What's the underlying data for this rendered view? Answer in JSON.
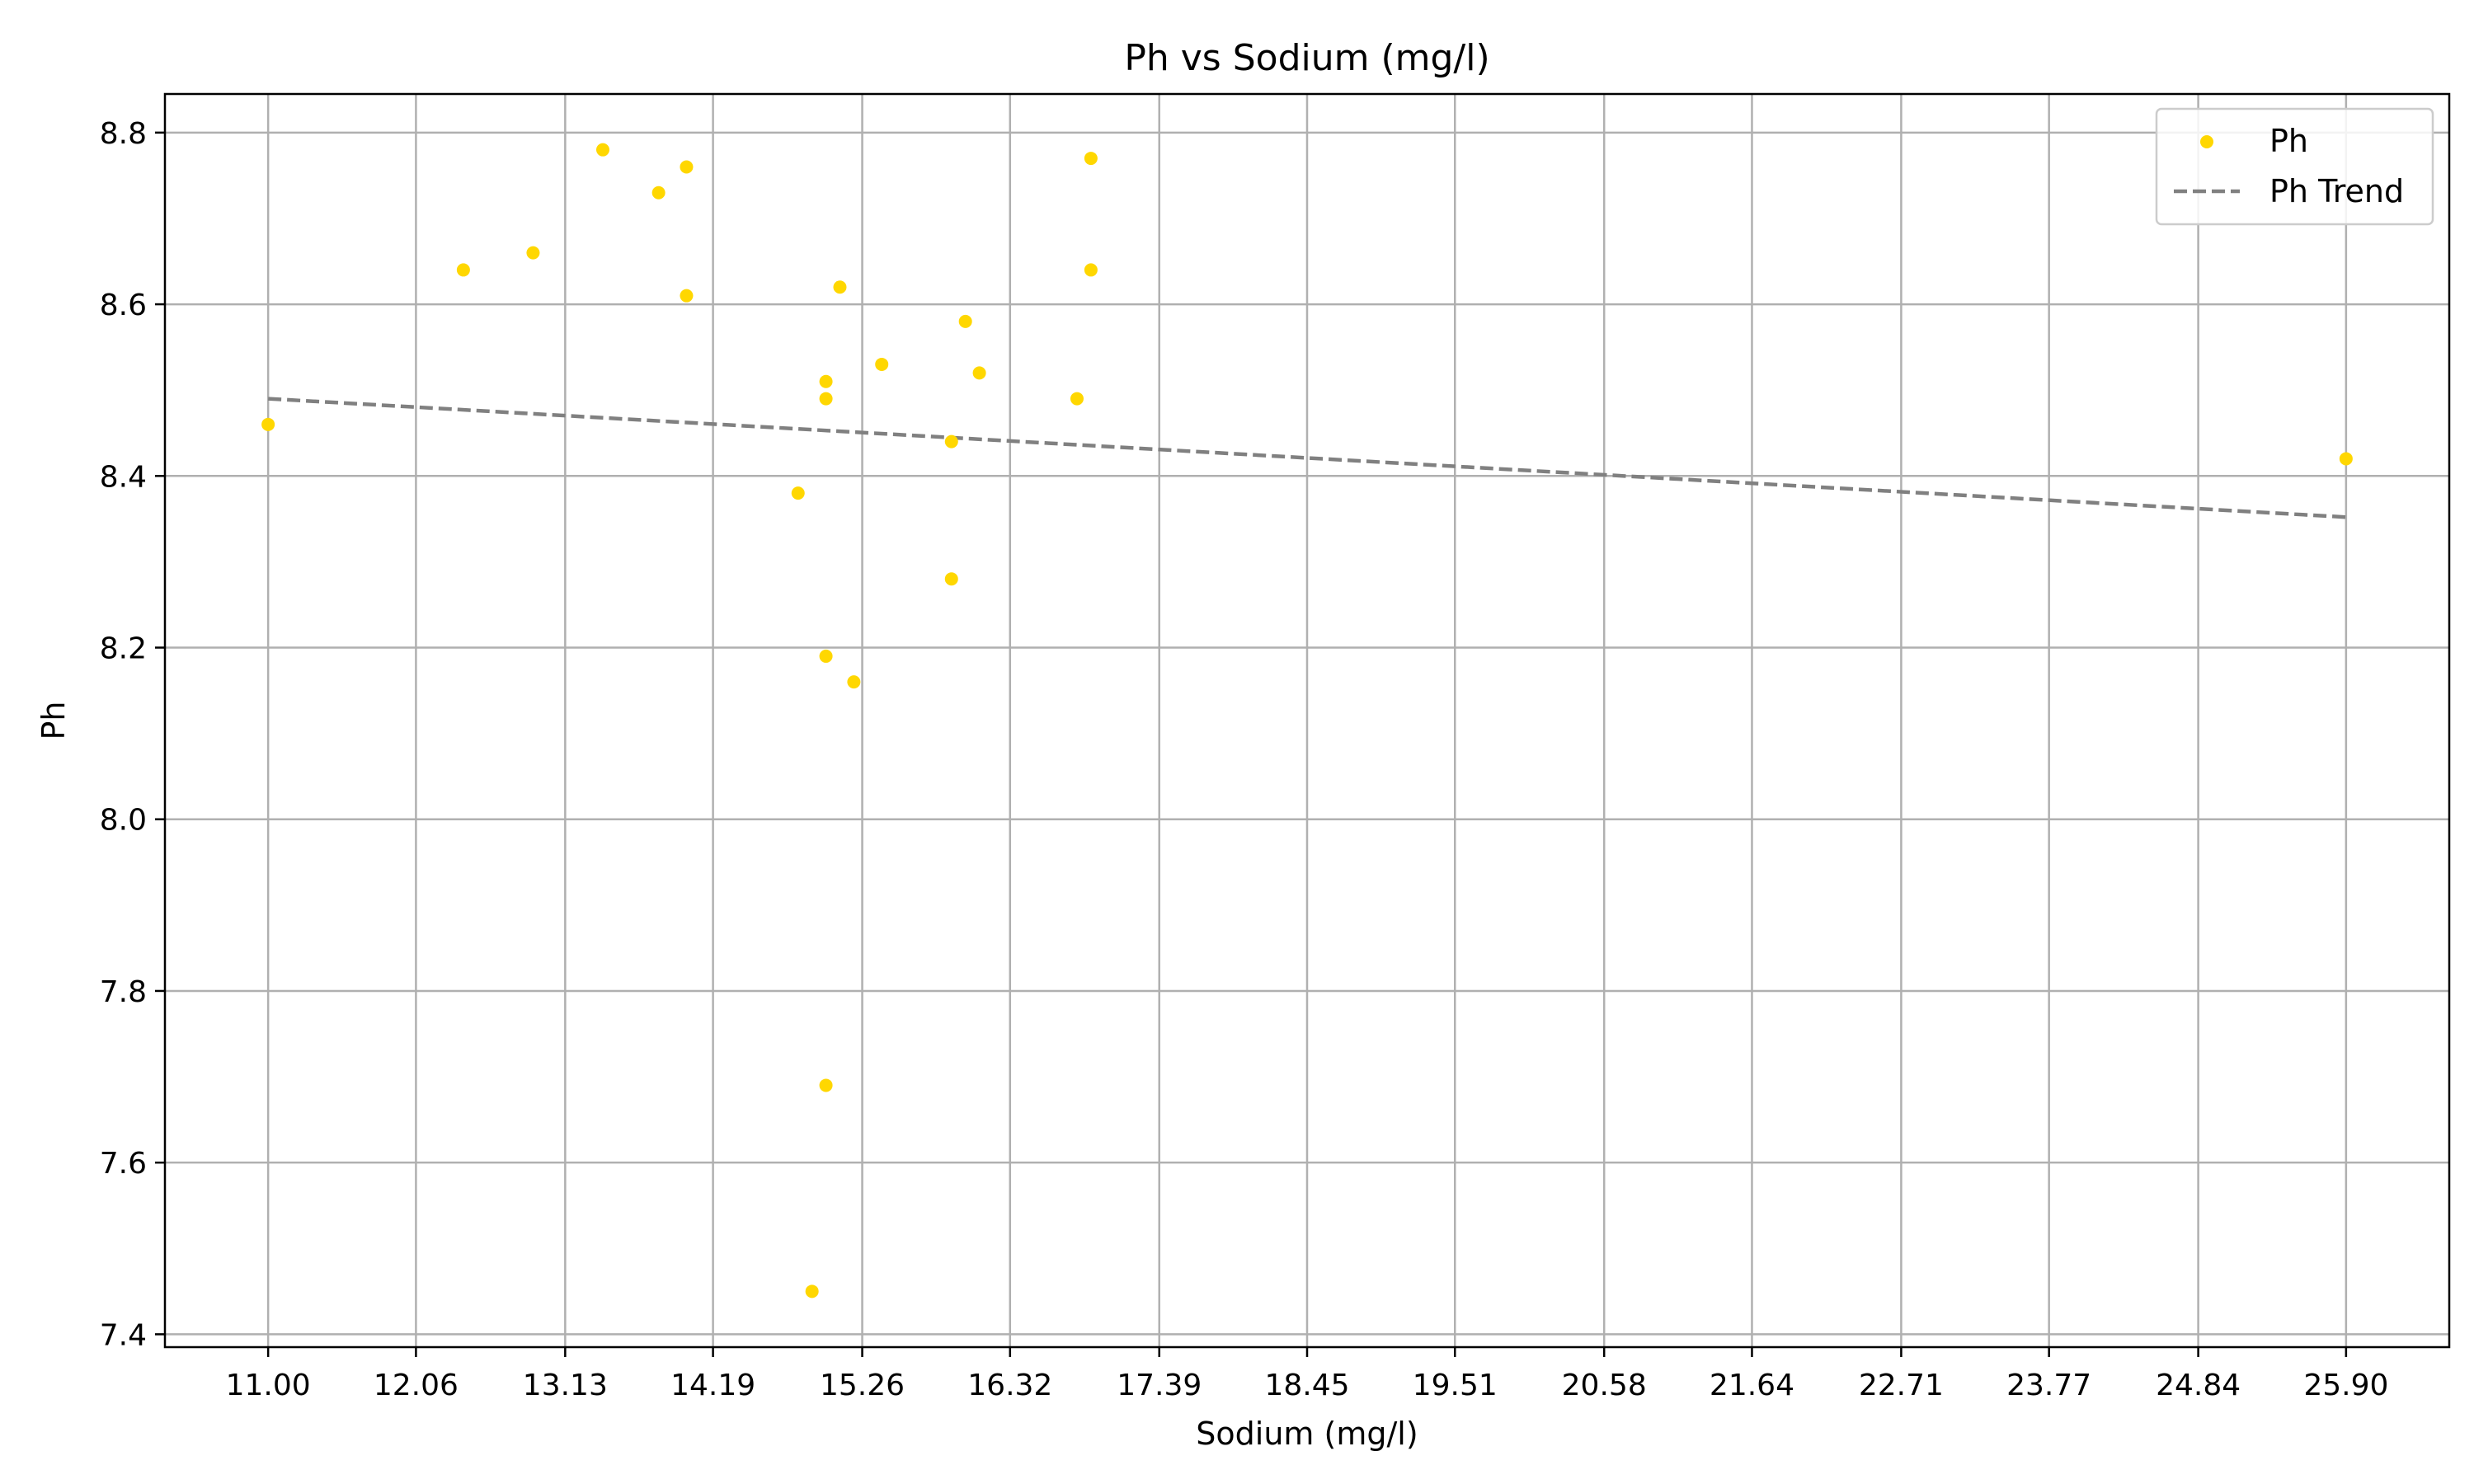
{
  "chart_data": {
    "type": "scatter",
    "title": "Ph vs Sodium (mg/l)",
    "xlabel": "Sodium (mg/l)",
    "ylabel": "Ph",
    "xlim": [
      10.26,
      26.64
    ],
    "ylim": [
      7.385,
      8.845
    ],
    "xticks": [
      "11.00",
      "12.06",
      "13.13",
      "14.19",
      "15.26",
      "16.32",
      "17.39",
      "18.45",
      "19.51",
      "20.58",
      "21.64",
      "22.71",
      "23.77",
      "24.84",
      "25.90"
    ],
    "yticks": [
      "7.4",
      "7.6",
      "7.8",
      "8.0",
      "8.2",
      "8.4",
      "8.6",
      "8.8"
    ],
    "grid": true,
    "legend_position": "top-right",
    "series": [
      {
        "name": "Ph",
        "kind": "scatter",
        "color": "#FFD700",
        "points": [
          {
            "x": 11.0,
            "y": 8.46
          },
          {
            "x": 12.4,
            "y": 8.64
          },
          {
            "x": 12.9,
            "y": 8.66
          },
          {
            "x": 13.4,
            "y": 8.78
          },
          {
            "x": 13.8,
            "y": 8.73
          },
          {
            "x": 14.0,
            "y": 8.76
          },
          {
            "x": 14.0,
            "y": 8.61
          },
          {
            "x": 14.8,
            "y": 8.38
          },
          {
            "x": 14.9,
            "y": 7.45
          },
          {
            "x": 15.0,
            "y": 8.51
          },
          {
            "x": 15.0,
            "y": 8.49
          },
          {
            "x": 15.0,
            "y": 8.19
          },
          {
            "x": 15.0,
            "y": 7.69
          },
          {
            "x": 15.1,
            "y": 8.62
          },
          {
            "x": 15.2,
            "y": 8.16
          },
          {
            "x": 15.4,
            "y": 8.53
          },
          {
            "x": 15.9,
            "y": 8.44
          },
          {
            "x": 15.9,
            "y": 8.28
          },
          {
            "x": 16.0,
            "y": 8.58
          },
          {
            "x": 16.1,
            "y": 8.52
          },
          {
            "x": 16.8,
            "y": 8.49
          },
          {
            "x": 16.9,
            "y": 8.77
          },
          {
            "x": 16.9,
            "y": 8.64
          },
          {
            "x": 25.9,
            "y": 8.42
          }
        ]
      },
      {
        "name": "Ph Trend",
        "kind": "line",
        "color": "#808080",
        "points": [
          {
            "x": 11.0,
            "y": 8.49
          },
          {
            "x": 25.9,
            "y": 8.352
          }
        ]
      }
    ]
  }
}
